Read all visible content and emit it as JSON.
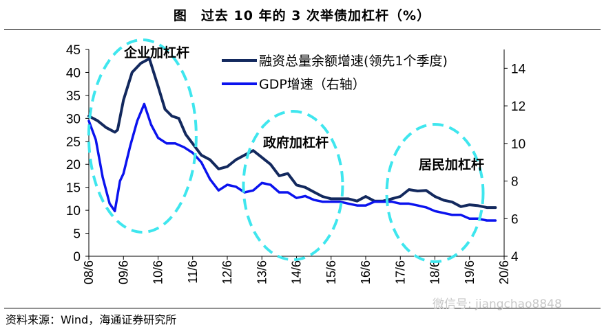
{
  "title": "图　过去 10 年的 3 次举债加杠杆（%）",
  "source": "资料来源：Wind，海通证券研究所",
  "watermark": "微信号: jiangchao8848",
  "colors": {
    "financing": "#13295e",
    "gdp": "#0b13ee",
    "highlight": "#3fe6ee"
  },
  "chart_data": {
    "type": "line",
    "x_ticks": [
      "08/6",
      "09/6",
      "10/6",
      "11/6",
      "12/6",
      "13/6",
      "14/6",
      "15/6",
      "16/6",
      "17/6",
      "18/6",
      "19/6",
      "20/6"
    ],
    "ylim_left": [
      0,
      45
    ],
    "yticks_left": [
      "0",
      "5",
      "10",
      "15",
      "20",
      "25",
      "30",
      "35",
      "40",
      "45"
    ],
    "ylim_right": [
      4,
      15
    ],
    "yticks_right": [
      "4",
      "6",
      "8",
      "10",
      "12",
      "14"
    ],
    "legend_position": "top-right",
    "series": [
      {
        "name": "融资总量余额增速(领先1个季度)",
        "axis": "left",
        "x": [
          0,
          0.25,
          0.5,
          0.75,
          0.83,
          1.0,
          1.25,
          1.5,
          1.75,
          2.0,
          2.2,
          2.4,
          2.6,
          2.8,
          3.0,
          3.25,
          3.5,
          3.75,
          4.0,
          4.25,
          4.5,
          4.75,
          5.0,
          5.25,
          5.5,
          5.75,
          6.0,
          6.25,
          6.5,
          6.75,
          7.0,
          7.25,
          7.5,
          7.75,
          8.0,
          8.25,
          8.5,
          8.75,
          9.0,
          9.25,
          9.5,
          9.75,
          10.0,
          10.25,
          10.5,
          10.75,
          11.0,
          11.25,
          11.5,
          11.75
        ],
        "values": [
          30.5,
          29.5,
          28,
          27,
          27.5,
          34,
          40,
          42,
          43,
          37,
          32,
          30.5,
          30,
          26.5,
          24.5,
          22,
          21,
          19,
          19.5,
          21,
          22,
          23,
          21.5,
          20,
          17.5,
          18,
          15.5,
          15,
          14,
          13,
          12.5,
          12.5,
          12.5,
          12,
          13,
          12,
          12,
          12.5,
          13,
          14.5,
          14.2,
          14.3,
          13,
          12.2,
          11.8,
          10.8,
          11.2,
          11,
          10.6,
          10.6
        ]
      },
      {
        "name": "GDP增速（右轴）",
        "axis": "right",
        "x": [
          0,
          0.2,
          0.4,
          0.6,
          0.75,
          0.9,
          1.0,
          1.2,
          1.4,
          1.6,
          1.8,
          2.0,
          2.25,
          2.5,
          2.75,
          3.0,
          3.25,
          3.5,
          3.75,
          4.0,
          4.25,
          4.5,
          4.75,
          5.0,
          5.25,
          5.5,
          5.75,
          6.0,
          6.25,
          6.5,
          6.75,
          7.0,
          7.25,
          7.5,
          7.75,
          8.0,
          8.25,
          8.5,
          8.75,
          9.0,
          9.25,
          9.5,
          9.75,
          10.0,
          10.25,
          10.5,
          10.75,
          11.0,
          11.25,
          11.5,
          11.75
        ],
        "values": [
          11.2,
          10.2,
          8.2,
          6.8,
          6.4,
          8.0,
          8.4,
          9.9,
          11.2,
          12.1,
          11.0,
          10.3,
          10.0,
          10.0,
          9.8,
          9.5,
          9.0,
          8.1,
          7.5,
          7.8,
          7.7,
          7.4,
          7.5,
          7.9,
          7.8,
          7.4,
          7.4,
          7.1,
          7.2,
          7.0,
          6.9,
          6.9,
          6.9,
          6.8,
          6.7,
          6.7,
          6.9,
          6.9,
          6.9,
          6.8,
          6.8,
          6.7,
          6.6,
          6.4,
          6.3,
          6.2,
          6.2,
          6.0,
          6.0,
          5.9,
          5.9
        ]
      }
    ],
    "annotations": [
      "企业加杠杆",
      "政府加杠杆",
      "居民加杠杆"
    ]
  }
}
